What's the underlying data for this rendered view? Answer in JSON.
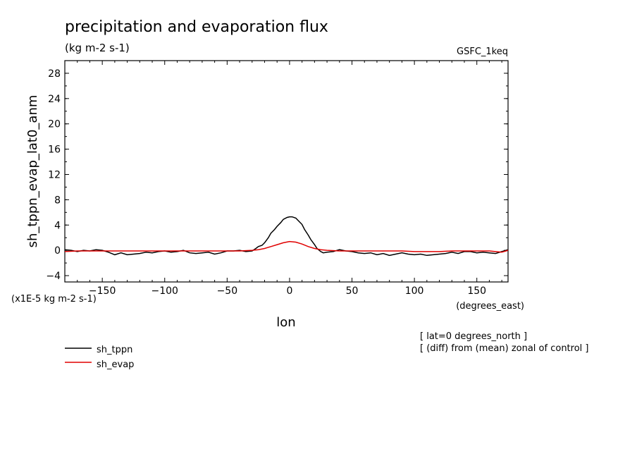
{
  "chart_data": {
    "type": "line",
    "title": "precipitation and evaporation flux",
    "subtitle": "(kg m-2 s-1)",
    "source_label": "GSFC_1keq",
    "xlabel": "lon",
    "x_units": "(degrees_east)",
    "ylabel": "sh_tppn_evap_lat0_anm",
    "y_scale_note": "(x1E-5 kg m-2 s-1)",
    "xlim": [
      -180,
      175
    ],
    "ylim": [
      -5,
      30
    ],
    "x_ticks": [
      -150,
      -100,
      -50,
      0,
      50,
      100,
      150
    ],
    "y_ticks": [
      -4,
      0,
      4,
      8,
      12,
      16,
      20,
      24,
      28
    ],
    "grid": false,
    "legend_position": "bottom-left",
    "annotations": [
      "[ lat=0 degrees_north ]",
      "[ (diff) from (mean) zonal of control ]"
    ],
    "series": [
      {
        "name": "sh_tppn",
        "color": "#000000",
        "x": [
          -180,
          -175,
          -170,
          -165,
          -160,
          -155,
          -150,
          -145,
          -140,
          -135,
          -130,
          -125,
          -120,
          -115,
          -110,
          -105,
          -100,
          -95,
          -90,
          -85,
          -80,
          -75,
          -70,
          -65,
          -60,
          -55,
          -50,
          -45,
          -40,
          -35,
          -30,
          -27,
          -25,
          -22,
          -20,
          -17,
          -15,
          -12,
          -10,
          -7,
          -5,
          -2,
          0,
          2,
          5,
          7,
          10,
          12,
          15,
          17,
          20,
          22,
          25,
          27,
          30,
          35,
          40,
          45,
          50,
          55,
          60,
          65,
          70,
          75,
          80,
          85,
          90,
          95,
          100,
          105,
          110,
          115,
          120,
          125,
          130,
          135,
          140,
          145,
          150,
          155,
          160,
          165,
          170,
          175
        ],
        "y": [
          0.1,
          0.0,
          -0.2,
          0.0,
          -0.1,
          0.1,
          0.0,
          -0.3,
          -0.7,
          -0.4,
          -0.7,
          -0.6,
          -0.5,
          -0.3,
          -0.4,
          -0.2,
          -0.1,
          -0.3,
          -0.2,
          0.0,
          -0.4,
          -0.5,
          -0.4,
          -0.3,
          -0.6,
          -0.4,
          -0.1,
          -0.1,
          0.0,
          -0.2,
          -0.1,
          0.3,
          0.6,
          0.8,
          1.2,
          2.0,
          2.7,
          3.3,
          3.8,
          4.4,
          4.9,
          5.2,
          5.3,
          5.3,
          5.1,
          4.7,
          4.1,
          3.3,
          2.4,
          1.7,
          0.9,
          0.3,
          -0.2,
          -0.4,
          -0.3,
          -0.2,
          0.1,
          -0.1,
          -0.2,
          -0.4,
          -0.5,
          -0.4,
          -0.7,
          -0.5,
          -0.8,
          -0.6,
          -0.4,
          -0.6,
          -0.7,
          -0.6,
          -0.8,
          -0.7,
          -0.6,
          -0.5,
          -0.3,
          -0.5,
          -0.2,
          -0.2,
          -0.4,
          -0.3,
          -0.4,
          -0.5,
          -0.2,
          0.1
        ]
      },
      {
        "name": "sh_evap",
        "color": "#e00000",
        "x": [
          -180,
          -170,
          -160,
          -150,
          -140,
          -130,
          -120,
          -110,
          -100,
          -90,
          -80,
          -70,
          -60,
          -50,
          -40,
          -30,
          -25,
          -20,
          -15,
          -10,
          -5,
          0,
          5,
          10,
          15,
          20,
          25,
          30,
          40,
          50,
          60,
          70,
          80,
          90,
          100,
          110,
          120,
          130,
          140,
          150,
          160,
          165,
          170,
          175
        ],
        "y": [
          -0.2,
          -0.1,
          -0.1,
          -0.1,
          -0.1,
          -0.1,
          -0.1,
          -0.1,
          -0.1,
          -0.1,
          -0.1,
          -0.1,
          -0.1,
          -0.1,
          -0.1,
          0.0,
          0.1,
          0.3,
          0.6,
          0.9,
          1.2,
          1.4,
          1.3,
          1.0,
          0.6,
          0.3,
          0.1,
          0.0,
          -0.1,
          -0.1,
          -0.1,
          -0.1,
          -0.1,
          -0.1,
          -0.2,
          -0.2,
          -0.2,
          -0.1,
          -0.1,
          -0.1,
          -0.1,
          -0.2,
          -0.3,
          0.0
        ]
      }
    ]
  }
}
